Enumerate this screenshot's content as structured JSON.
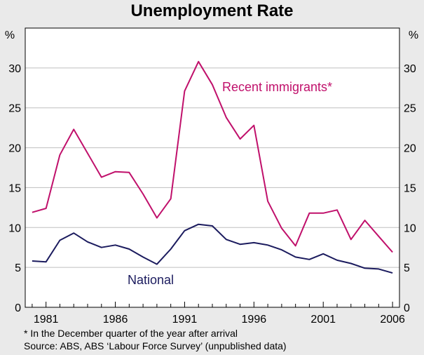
{
  "title": "Unemployment Rate",
  "footnotes": {
    "note": "*   In the December quarter of the year after arrival",
    "source": "Source: ABS, ABS ‘Labour Force Survey’ (unpublished data)"
  },
  "colors": {
    "background": "#eaeaea",
    "plot_background": "#ffffff",
    "grid": "#bfbfbf",
    "recent_immigrants": "#c0106b",
    "national": "#1b1b5e"
  },
  "chart_data": {
    "type": "line",
    "title": "Unemployment Rate",
    "y_unit_label_left": "%",
    "y_unit_label_right": "%",
    "ylim": [
      0,
      35
    ],
    "yticks": [
      0,
      5,
      10,
      15,
      20,
      25,
      30
    ],
    "xlim": [
      1979.5,
      2006.5
    ],
    "xticks": [
      1981,
      1986,
      1991,
      1996,
      2001,
      2006
    ],
    "grid": true,
    "x": [
      1980,
      1981,
      1982,
      1983,
      1984,
      1985,
      1986,
      1987,
      1988,
      1989,
      1990,
      1991,
      1992,
      1993,
      1994,
      1995,
      1996,
      1997,
      1998,
      1999,
      2000,
      2001,
      2002,
      2003,
      2004,
      2005,
      2006
    ],
    "series": [
      {
        "name": "Recent immigrants*",
        "values": [
          11.9,
          12.4,
          19.1,
          22.3,
          19.3,
          16.3,
          17.0,
          16.9,
          14.2,
          11.2,
          13.6,
          27.1,
          30.8,
          27.9,
          23.8,
          21.1,
          22.8,
          13.3,
          9.9,
          7.7,
          11.8,
          11.8,
          12.2,
          8.5,
          10.9,
          8.9,
          6.9
        ]
      },
      {
        "name": "National",
        "values": [
          5.8,
          5.7,
          8.4,
          9.3,
          8.2,
          7.5,
          7.8,
          7.3,
          6.3,
          5.4,
          7.3,
          9.6,
          10.4,
          10.2,
          8.5,
          7.9,
          8.1,
          7.8,
          7.2,
          6.3,
          6.0,
          6.7,
          5.9,
          5.5,
          4.9,
          4.8,
          4.3
        ]
      }
    ]
  }
}
